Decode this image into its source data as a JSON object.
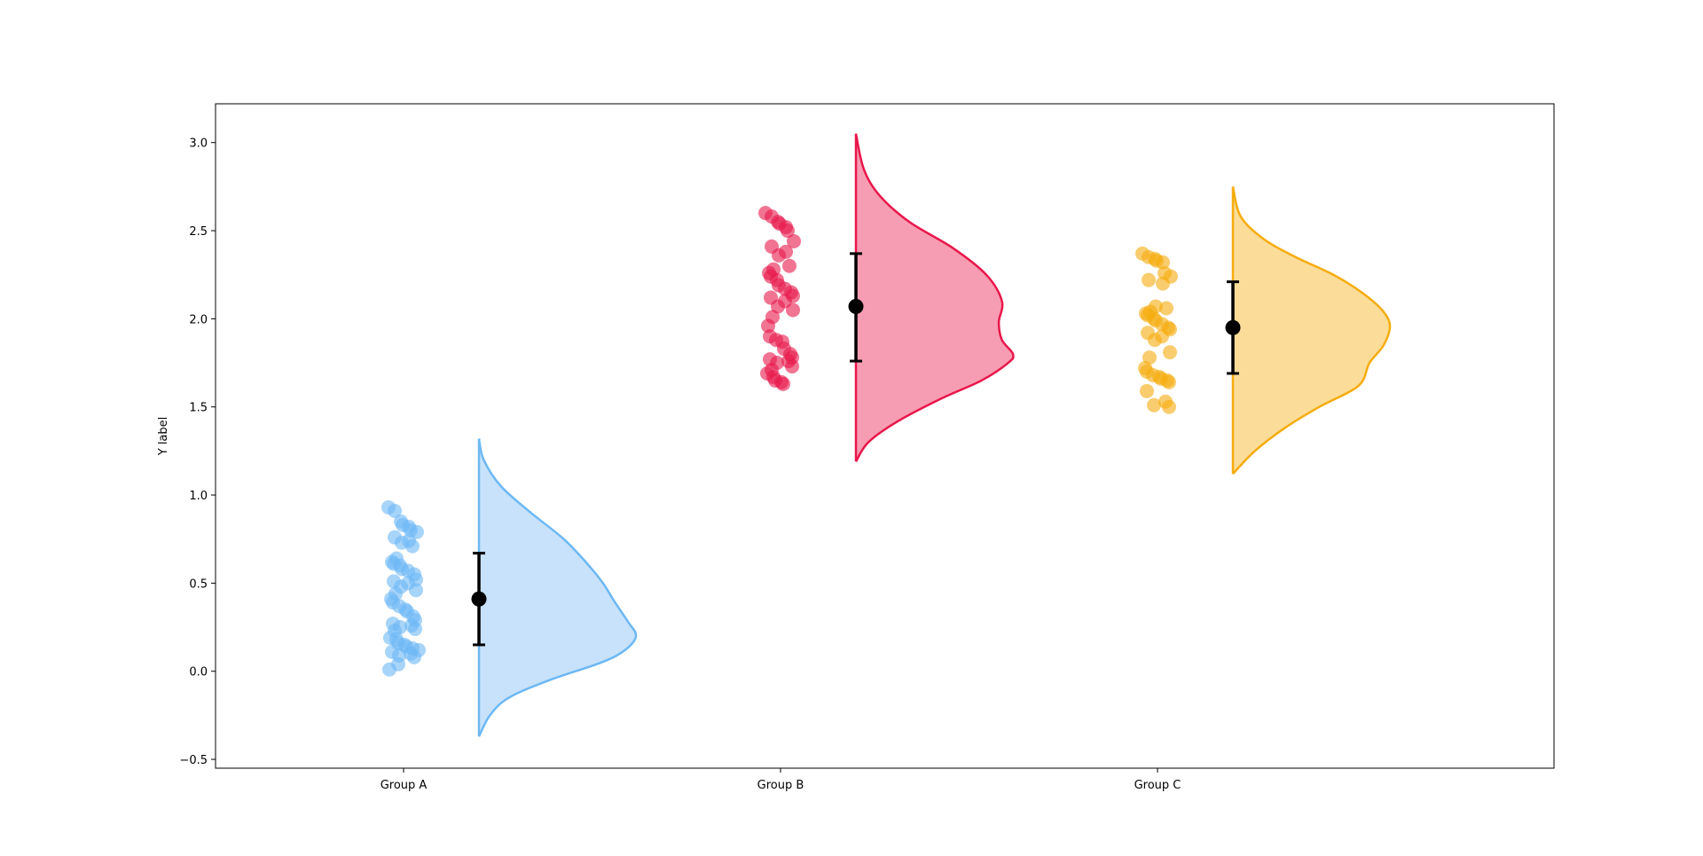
{
  "chart_data": {
    "type": "raincloud",
    "title": "",
    "xlabel": "",
    "ylabel": "Y label",
    "ylim": [
      -0.55,
      3.22
    ],
    "yticks": [
      -0.5,
      0.0,
      0.5,
      1.0,
      1.5,
      2.0,
      2.5,
      3.0
    ],
    "ytick_labels": [
      "−0.5",
      "0.0",
      "0.5",
      "1.0",
      "1.5",
      "2.0",
      "2.5",
      "3.0"
    ],
    "categories": [
      "Group A",
      "Group B",
      "Group C"
    ],
    "grid": false,
    "legend": "none",
    "groups": [
      {
        "name": "Group A",
        "color": "#6cb8f5",
        "fill": "#c8e2fb",
        "mean": 0.41,
        "error": [
          0.15,
          0.67
        ],
        "points": [
          0.93,
          0.91,
          0.85,
          0.83,
          0.82,
          0.8,
          0.79,
          0.76,
          0.74,
          0.73,
          0.71,
          0.64,
          0.62,
          0.61,
          0.6,
          0.58,
          0.57,
          0.55,
          0.52,
          0.51,
          0.5,
          0.48,
          0.46,
          0.44,
          0.41,
          0.39,
          0.37,
          0.35,
          0.34,
          0.31,
          0.29,
          0.27,
          0.26,
          0.25,
          0.24,
          0.23,
          0.19,
          0.18,
          0.16,
          0.15,
          0.14,
          0.13,
          0.12,
          0.11,
          0.1,
          0.09,
          0.08,
          0.04,
          0.01
        ],
        "density": {
          "y": [
            -0.37,
            -0.25,
            -0.15,
            -0.05,
            0.05,
            0.12,
            0.2,
            0.28,
            0.4,
            0.5,
            0.6,
            0.75,
            0.9,
            1.05,
            1.2,
            1.32
          ],
          "d": [
            0.0,
            0.07,
            0.19,
            0.45,
            0.78,
            0.93,
            1.0,
            0.95,
            0.86,
            0.79,
            0.7,
            0.54,
            0.33,
            0.14,
            0.03,
            0.0
          ]
        }
      },
      {
        "name": "Group B",
        "color": "#e8174b",
        "fill": "#f79db3",
        "mean": 2.07,
        "error": [
          1.76,
          2.37
        ],
        "points": [
          2.6,
          2.58,
          2.55,
          2.54,
          2.52,
          2.5,
          2.44,
          2.41,
          2.38,
          2.36,
          2.3,
          2.28,
          2.26,
          2.24,
          2.22,
          2.19,
          2.17,
          2.15,
          2.13,
          2.12,
          2.1,
          2.07,
          2.05,
          2.01,
          1.96,
          1.9,
          1.88,
          1.87,
          1.83,
          1.8,
          1.78,
          1.77,
          1.76,
          1.75,
          1.73,
          1.71,
          1.69,
          1.67,
          1.65,
          1.64,
          1.63
        ],
        "density": {
          "y": [
            1.19,
            1.3,
            1.42,
            1.55,
            1.65,
            1.75,
            1.8,
            1.88,
            1.98,
            2.1,
            2.25,
            2.4,
            2.55,
            2.7,
            2.85,
            3.05
          ],
          "d": [
            0.0,
            0.08,
            0.27,
            0.55,
            0.8,
            0.97,
            1.0,
            0.93,
            0.91,
            0.93,
            0.83,
            0.62,
            0.34,
            0.15,
            0.05,
            0.0
          ]
        }
      },
      {
        "name": "Group C",
        "color": "#f5ac0e",
        "fill": "#fbdd99",
        "mean": 1.95,
        "error": [
          1.69,
          2.21
        ],
        "points": [
          2.37,
          2.35,
          2.34,
          2.33,
          2.32,
          2.26,
          2.24,
          2.22,
          2.2,
          2.07,
          2.06,
          2.04,
          2.03,
          2.02,
          2.0,
          1.99,
          1.97,
          1.95,
          1.94,
          1.92,
          1.9,
          1.88,
          1.81,
          1.78,
          1.72,
          1.7,
          1.68,
          1.67,
          1.66,
          1.65,
          1.64,
          1.59,
          1.53,
          1.51,
          1.5
        ],
        "density": {
          "y": [
            1.12,
            1.25,
            1.38,
            1.5,
            1.62,
            1.75,
            1.85,
            1.96,
            2.05,
            2.15,
            2.25,
            2.35,
            2.45,
            2.58,
            2.75
          ],
          "d": [
            0.0,
            0.14,
            0.33,
            0.55,
            0.8,
            0.87,
            0.96,
            1.0,
            0.95,
            0.82,
            0.64,
            0.4,
            0.2,
            0.05,
            0.0
          ]
        }
      }
    ]
  }
}
